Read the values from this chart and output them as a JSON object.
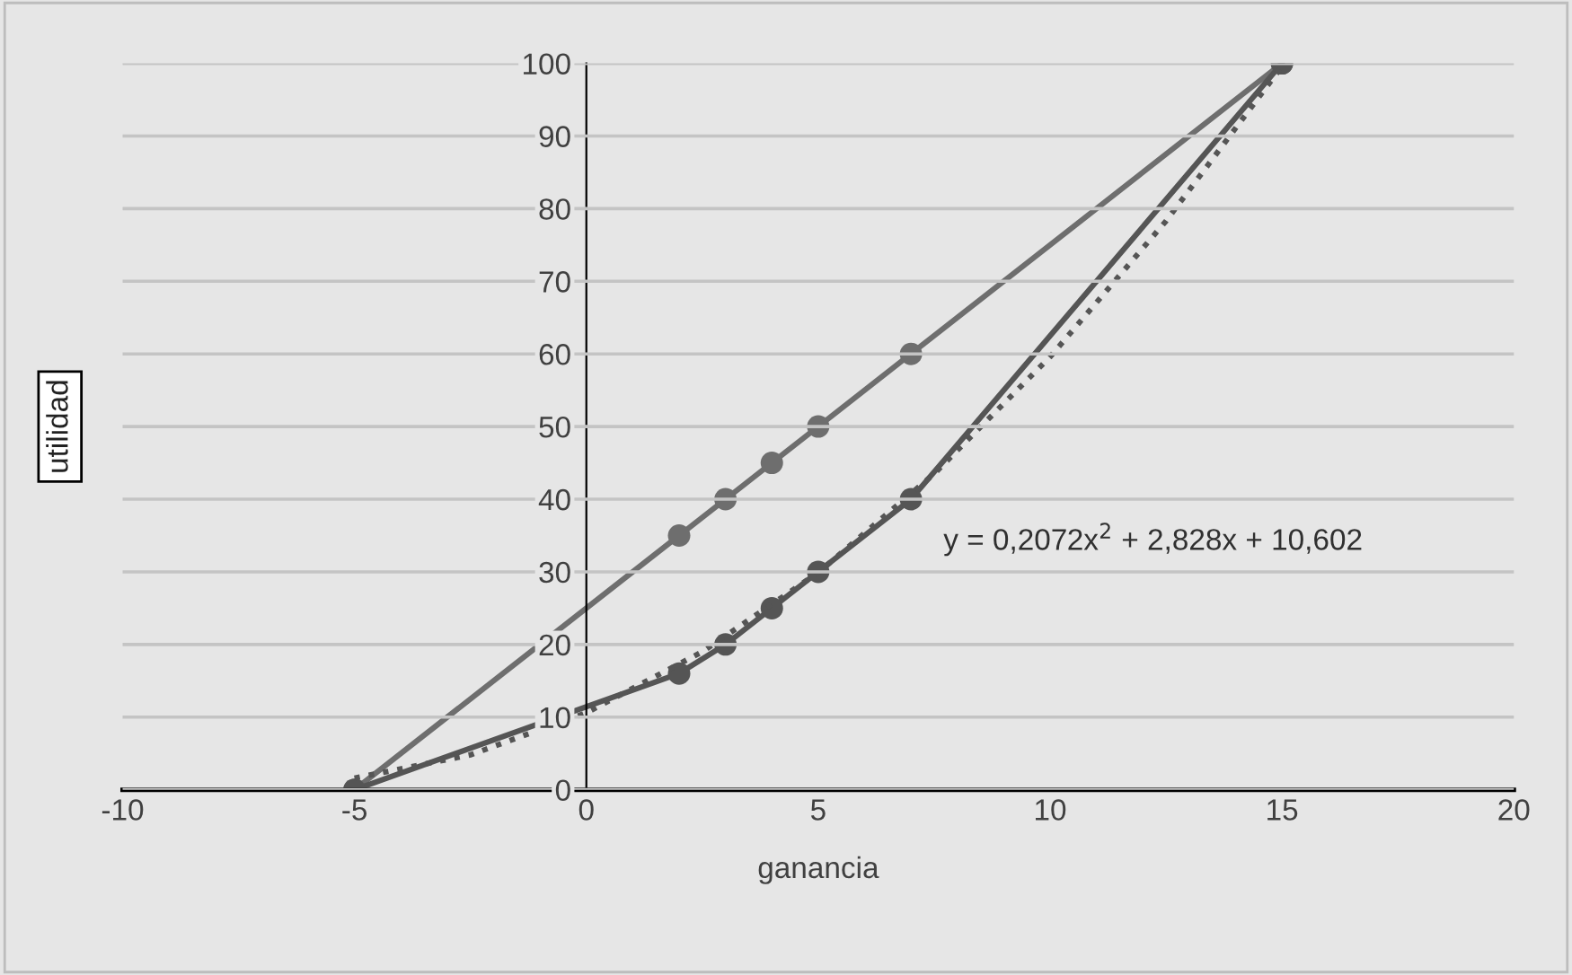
{
  "chart_data": {
    "type": "line",
    "xlabel": "ganancia",
    "ylabel": "utilidad",
    "xlim": [
      -10,
      20
    ],
    "xticks": [
      -10,
      -5,
      0,
      5,
      10,
      15,
      20
    ],
    "ylim": [
      0,
      100
    ],
    "yticks": [
      0,
      10,
      20,
      30,
      40,
      50,
      60,
      70,
      80,
      90,
      100
    ],
    "grid": "y",
    "legend": false,
    "series": [
      {
        "color": "#6e6e6e",
        "marker": "circle",
        "x": [
          -5,
          2,
          3,
          4,
          5,
          7,
          15
        ],
        "values": [
          0,
          35,
          40,
          45,
          50,
          60,
          100
        ]
      },
      {
        "color": "#555555",
        "marker": "circle",
        "x": [
          -5,
          2,
          3,
          4,
          5,
          7,
          15
        ],
        "values": [
          0,
          16,
          20,
          25,
          30,
          40,
          100
        ]
      },
      {
        "color": "#555555",
        "marker": "none",
        "line_style": "dotted",
        "x": [
          -5,
          -2.5,
          0,
          2.5,
          5,
          7.5,
          10,
          12.5,
          15
        ],
        "values": [
          1.6,
          4.8,
          10.6,
          19,
          29.9,
          43.5,
          59.6,
          78.3,
          99.6
        ]
      }
    ],
    "annotations": [
      "y = 0,2072x$^{2}$ + 2,828x + 10,602"
    ]
  }
}
